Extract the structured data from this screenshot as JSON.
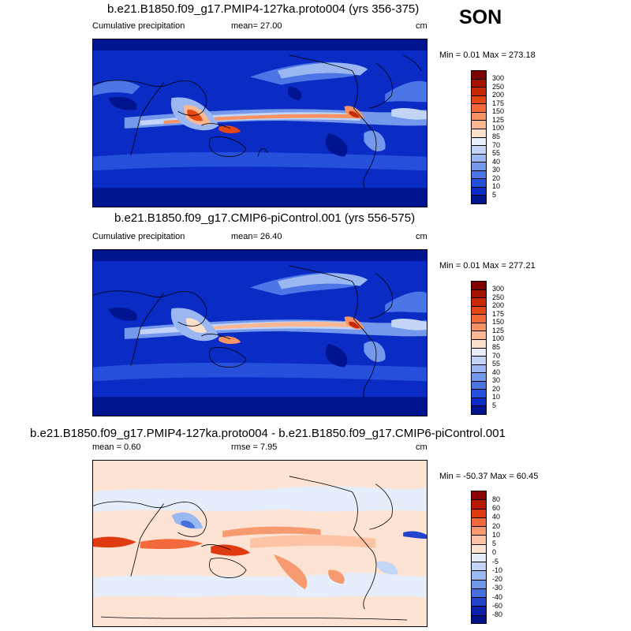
{
  "season": "SON",
  "panels": [
    {
      "title": "b.e21.B1850.f09_g17.PMIP4-127ka.proto004 (yrs 356-375)",
      "left_label": "Cumulative precipitation",
      "center_label": "mean=  27.00",
      "right_label": "cm",
      "minmax": "Min =   0.01 Max = 273.18",
      "colorbar": {
        "labels": [
          "300",
          "250",
          "200",
          "175",
          "150",
          "125",
          "100",
          "85",
          "70",
          "55",
          "40",
          "30",
          "20",
          "10",
          "5"
        ],
        "colors": [
          "#7f0000",
          "#a31300",
          "#c72a00",
          "#e34812",
          "#f26a35",
          "#f79262",
          "#fab791",
          "#fde0c9",
          "#e9eefb",
          "#c3d4f7",
          "#9bb7f2",
          "#7498ec",
          "#4c76e5",
          "#2650db",
          "#0a2cc4",
          "#00148f"
        ]
      }
    },
    {
      "title": "b.e21.B1850.f09_g17.CMIP6-piControl.001 (yrs 556-575)",
      "left_label": "Cumulative precipitation",
      "center_label": "mean=  26.40",
      "right_label": "cm",
      "minmax": "Min =   0.01 Max = 277.21",
      "colorbar": {
        "labels": [
          "300",
          "250",
          "200",
          "175",
          "150",
          "125",
          "100",
          "85",
          "70",
          "55",
          "40",
          "30",
          "20",
          "10",
          "5"
        ],
        "colors": [
          "#7f0000",
          "#a31300",
          "#c72a00",
          "#e34812",
          "#f26a35",
          "#f79262",
          "#fab791",
          "#fde0c9",
          "#e9eefb",
          "#c3d4f7",
          "#9bb7f2",
          "#7498ec",
          "#4c76e5",
          "#2650db",
          "#0a2cc4",
          "#00148f"
        ]
      }
    },
    {
      "title": "b.e21.B1850.f09_g17.PMIP4-127ka.proto004 - b.e21.B1850.f09_g17.CMIP6-piControl.001",
      "left_label": "mean =   0.60",
      "center_label": "rmse =   7.95",
      "right_label": "cm",
      "minmax": "Min = -50.37 Max =  60.45",
      "colorbar": {
        "labels": [
          "80",
          "60",
          "40",
          "20",
          "10",
          "5",
          "0",
          "-5",
          "-10",
          "-20",
          "-30",
          "-40",
          "-60",
          "-80"
        ],
        "colors": [
          "#8b0000",
          "#b81a00",
          "#e03a10",
          "#f26a3c",
          "#f79a70",
          "#fcc4a4",
          "#fde3d3",
          "#e6eefc",
          "#c3d6f7",
          "#9ab9f1",
          "#6f97ea",
          "#476fe0",
          "#2243cc",
          "#0c1fa8",
          "#00108a"
        ]
      }
    }
  ]
}
